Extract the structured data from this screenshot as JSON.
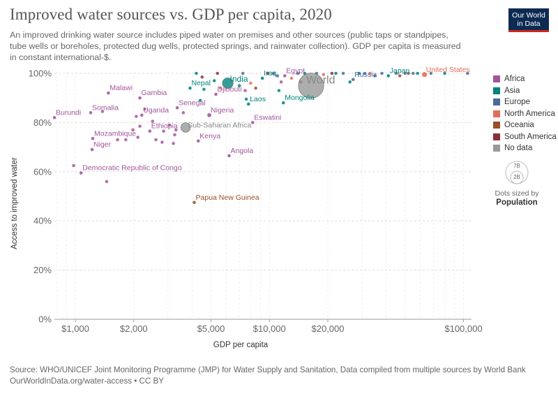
{
  "header": {
    "title": "Improved water sources vs. GDP per capita, 2020",
    "subtitle": "An improved drinking water source includes piped water on premises and other sources (public taps or standpipes, tube wells or boreholes, protected dug wells, protected springs, and rainwater collection). GDP per capita is measured in constant international-$.",
    "logo_line1": "Our World",
    "logo_line2": "in Data"
  },
  "footer": {
    "source": "Source: WHO/UNICEF Joint Monitoring Programme (JMP) for Water Supply and Sanitation, Data compiled from multiple sources by World Bank",
    "license": "OurWorldInData.org/water-access • CC BY"
  },
  "legend": {
    "items": [
      {
        "label": "Africa",
        "color": "#a2559c"
      },
      {
        "label": "Asia",
        "color": "#00847e"
      },
      {
        "label": "Europe",
        "color": "#4c6a9c"
      },
      {
        "label": "North America",
        "color": "#e56e5a"
      },
      {
        "label": "Oceania",
        "color": "#9a5129"
      },
      {
        "label": "South America",
        "color": "#883039"
      },
      {
        "label": "No data",
        "color": "#999999"
      }
    ],
    "size_big": "7B",
    "size_small": "2B",
    "size_caption": "Dots sized by",
    "size_variable": "Population"
  },
  "chart_data": {
    "type": "scatter",
    "title": "Improved water sources vs. GDP per capita, 2020",
    "xlabel": "GDP per capita",
    "ylabel": "Access to improved water",
    "xscale": "log",
    "xlim": [
      780,
      110000
    ],
    "ylim": [
      0,
      100
    ],
    "xticks": [
      {
        "value": 1000,
        "label": "$1,000"
      },
      {
        "value": 2000,
        "label": "$2,000"
      },
      {
        "value": 5000,
        "label": "$5,000"
      },
      {
        "value": 10000,
        "label": "$10,000"
      },
      {
        "value": 20000,
        "label": "$20,000"
      },
      {
        "value": 100000,
        "label": "$100,000"
      }
    ],
    "yticks": [
      {
        "value": 0,
        "label": "0%"
      },
      {
        "value": 20,
        "label": "20%"
      },
      {
        "value": 40,
        "label": "40%"
      },
      {
        "value": 60,
        "label": "60%"
      },
      {
        "value": 80,
        "label": "80%"
      },
      {
        "value": 100,
        "label": "100%"
      }
    ],
    "grid": true,
    "region_colors": {
      "Africa": "#a2559c",
      "Asia": "#00847e",
      "Europe": "#4c6a9c",
      "North America": "#e56e5a",
      "Oceania": "#9a5129",
      "South America": "#883039",
      "No data": "#999999"
    },
    "labeled_points": [
      {
        "name": "Burundi",
        "gdp": 780,
        "water": 82,
        "region": "Africa",
        "pop": 0.012
      },
      {
        "name": "Somalia",
        "gdp": 1200,
        "water": 84,
        "region": "Africa",
        "pop": 0.016
      },
      {
        "name": "Malawi",
        "gdp": 1480,
        "water": 92,
        "region": "Africa",
        "pop": 0.019
      },
      {
        "name": "Gambia",
        "gdp": 2150,
        "water": 90,
        "region": "Africa",
        "pop": 0.003
      },
      {
        "name": "Uganda",
        "gdp": 2200,
        "water": 83,
        "region": "Africa",
        "pop": 0.046
      },
      {
        "name": "Ethiopia",
        "gdp": 2420,
        "water": 76.5,
        "region": "Africa",
        "pop": 0.12
      },
      {
        "name": "Mozambique",
        "gdp": 1230,
        "water": 73.5,
        "region": "Africa",
        "pop": 0.031
      },
      {
        "name": "Niger",
        "gdp": 1220,
        "water": 69,
        "region": "Africa",
        "pop": 0.024
      },
      {
        "name": "Democratic Republic of Congo",
        "gdp": 1070,
        "water": 59.5,
        "region": "Africa",
        "pop": 0.092
      },
      {
        "name": "Senegal",
        "gdp": 3350,
        "water": 86,
        "region": "Africa",
        "pop": 0.017
      },
      {
        "name": "Nepal",
        "gdp": 3900,
        "water": 94,
        "region": "Asia",
        "pop": 0.03
      },
      {
        "name": "India",
        "gdp": 6100,
        "water": 96,
        "region": "Asia",
        "pop": 1.4
      },
      {
        "name": "Djibouti",
        "gdp": 5300,
        "water": 91.5,
        "region": "Africa",
        "pop": 0.001
      },
      {
        "name": "Nigeria",
        "gdp": 4900,
        "water": 83,
        "region": "Africa",
        "pop": 0.21
      },
      {
        "name": "Sub-Saharan Africa",
        "gdp": 3700,
        "water": 78,
        "region": "No data",
        "pop": 1.1
      },
      {
        "name": "Kenya",
        "gdp": 4300,
        "water": 72.5,
        "region": "Africa",
        "pop": 0.054
      },
      {
        "name": "Angola",
        "gdp": 6200,
        "water": 66.5,
        "region": "Africa",
        "pop": 0.033
      },
      {
        "name": "Papua New Guinea",
        "gdp": 4100,
        "water": 47.5,
        "region": "Oceania",
        "pop": 0.009
      },
      {
        "name": "Iraq",
        "gdp": 9200,
        "water": 98,
        "region": "Asia",
        "pop": 0.04
      },
      {
        "name": "Laos",
        "gdp": 7800,
        "water": 87.5,
        "region": "Asia",
        "pop": 0.007
      },
      {
        "name": "Eswatini",
        "gdp": 8200,
        "water": 80,
        "region": "Africa",
        "pop": 0.001
      },
      {
        "name": "Egypt",
        "gdp": 12000,
        "water": 99,
        "region": "Africa",
        "pop": 0.1
      },
      {
        "name": "Mongolia",
        "gdp": 11800,
        "water": 88,
        "region": "Asia",
        "pop": 0.003
      },
      {
        "name": "World",
        "gdp": 16400,
        "water": 95,
        "region": "No data",
        "pop": 7.8
      },
      {
        "name": "Russia",
        "gdp": 27000,
        "water": 97.5,
        "region": "Europe",
        "pop": 0.14
      },
      {
        "name": "Japan",
        "gdp": 41000,
        "water": 99,
        "region": "Asia",
        "pop": 0.125
      },
      {
        "name": "United States",
        "gdp": 63000,
        "water": 99.5,
        "region": "North America",
        "pop": 0.33
      }
    ],
    "other_points": [
      {
        "gdp": 980,
        "water": 62.5,
        "region": "Africa"
      },
      {
        "gdp": 1450,
        "water": 56,
        "region": "Africa"
      },
      {
        "gdp": 1380,
        "water": 84.5,
        "region": "Africa"
      },
      {
        "gdp": 1650,
        "water": 73,
        "region": "Africa"
      },
      {
        "gdp": 1820,
        "water": 73,
        "region": "Africa"
      },
      {
        "gdp": 1980,
        "water": 77,
        "region": "Africa"
      },
      {
        "gdp": 2060,
        "water": 82.5,
        "region": "Africa"
      },
      {
        "gdp": 2100,
        "water": 74,
        "region": "Africa"
      },
      {
        "gdp": 2150,
        "water": 78.5,
        "region": "Africa"
      },
      {
        "gdp": 2280,
        "water": 85.5,
        "region": "Africa"
      },
      {
        "gdp": 2500,
        "water": 80.5,
        "region": "Africa"
      },
      {
        "gdp": 2600,
        "water": 73,
        "region": "Africa"
      },
      {
        "gdp": 2800,
        "water": 72,
        "region": "Africa"
      },
      {
        "gdp": 2850,
        "water": 76.5,
        "region": "Africa"
      },
      {
        "gdp": 3050,
        "water": 79,
        "region": "Africa"
      },
      {
        "gdp": 3200,
        "water": 71.5,
        "region": "Africa"
      },
      {
        "gdp": 3250,
        "water": 75,
        "region": "Africa"
      },
      {
        "gdp": 3300,
        "water": 77,
        "region": "Africa"
      },
      {
        "gdp": 3600,
        "water": 84,
        "region": "Africa"
      },
      {
        "gdp": 4200,
        "water": 100,
        "region": "Asia"
      },
      {
        "gdp": 4500,
        "water": 98.5,
        "region": "South America"
      },
      {
        "gdp": 4400,
        "water": 89,
        "region": "Asia"
      },
      {
        "gdp": 4600,
        "water": 93.5,
        "region": "Asia"
      },
      {
        "gdp": 5200,
        "water": 97,
        "region": "Asia"
      },
      {
        "gdp": 5400,
        "water": 100,
        "region": "South America"
      },
      {
        "gdp": 5600,
        "water": 94,
        "region": "North America"
      },
      {
        "gdp": 7000,
        "water": 95,
        "region": "Asia"
      },
      {
        "gdp": 7300,
        "water": 100,
        "region": "Europe"
      },
      {
        "gdp": 7500,
        "water": 93,
        "region": "Africa"
      },
      {
        "gdp": 7600,
        "water": 89.5,
        "region": "Asia"
      },
      {
        "gdp": 8000,
        "water": 96,
        "region": "North America"
      },
      {
        "gdp": 8500,
        "water": 94,
        "region": "Oceania"
      },
      {
        "gdp": 9800,
        "water": 100,
        "region": "South America"
      },
      {
        "gdp": 10500,
        "water": 100,
        "region": "Europe"
      },
      {
        "gdp": 11000,
        "water": 99,
        "region": "Europe"
      },
      {
        "gdp": 11200,
        "water": 93,
        "region": "Asia"
      },
      {
        "gdp": 11500,
        "water": 96.5,
        "region": "Africa"
      },
      {
        "gdp": 13000,
        "water": 98,
        "region": "North America"
      },
      {
        "gdp": 14000,
        "water": 100,
        "region": "Europe"
      },
      {
        "gdp": 14500,
        "water": 96.5,
        "region": "South America"
      },
      {
        "gdp": 15200,
        "water": 100,
        "region": "Asia"
      },
      {
        "gdp": 17500,
        "water": 100,
        "region": "Europe"
      },
      {
        "gdp": 19000,
        "water": 99.5,
        "region": "North America"
      },
      {
        "gdp": 21000,
        "water": 100,
        "region": "South America"
      },
      {
        "gdp": 22000,
        "water": 100,
        "region": "Asia"
      },
      {
        "gdp": 24000,
        "water": 100,
        "region": "Europe"
      },
      {
        "gdp": 26000,
        "water": 96.5,
        "region": "Asia"
      },
      {
        "gdp": 29000,
        "water": 100,
        "region": "Asia"
      },
      {
        "gdp": 31000,
        "water": 100,
        "region": "Europe"
      },
      {
        "gdp": 33000,
        "water": 100,
        "region": "North America"
      },
      {
        "gdp": 35000,
        "water": 99,
        "region": "Europe"
      },
      {
        "gdp": 38000,
        "water": 100,
        "region": "Europe"
      },
      {
        "gdp": 45000,
        "water": 100,
        "region": "Europe"
      },
      {
        "gdp": 47000,
        "water": 99,
        "region": "Oceania"
      },
      {
        "gdp": 50000,
        "water": 100,
        "region": "Europe"
      },
      {
        "gdp": 52000,
        "water": 100,
        "region": "Oceania"
      },
      {
        "gdp": 55000,
        "water": 100,
        "region": "Europe"
      },
      {
        "gdp": 58000,
        "water": 100,
        "region": "Asia"
      },
      {
        "gdp": 68000,
        "water": 100,
        "region": "Europe"
      },
      {
        "gdp": 80000,
        "water": 100,
        "region": "Asia"
      },
      {
        "gdp": 105000,
        "water": 100,
        "region": "Europe"
      }
    ]
  }
}
